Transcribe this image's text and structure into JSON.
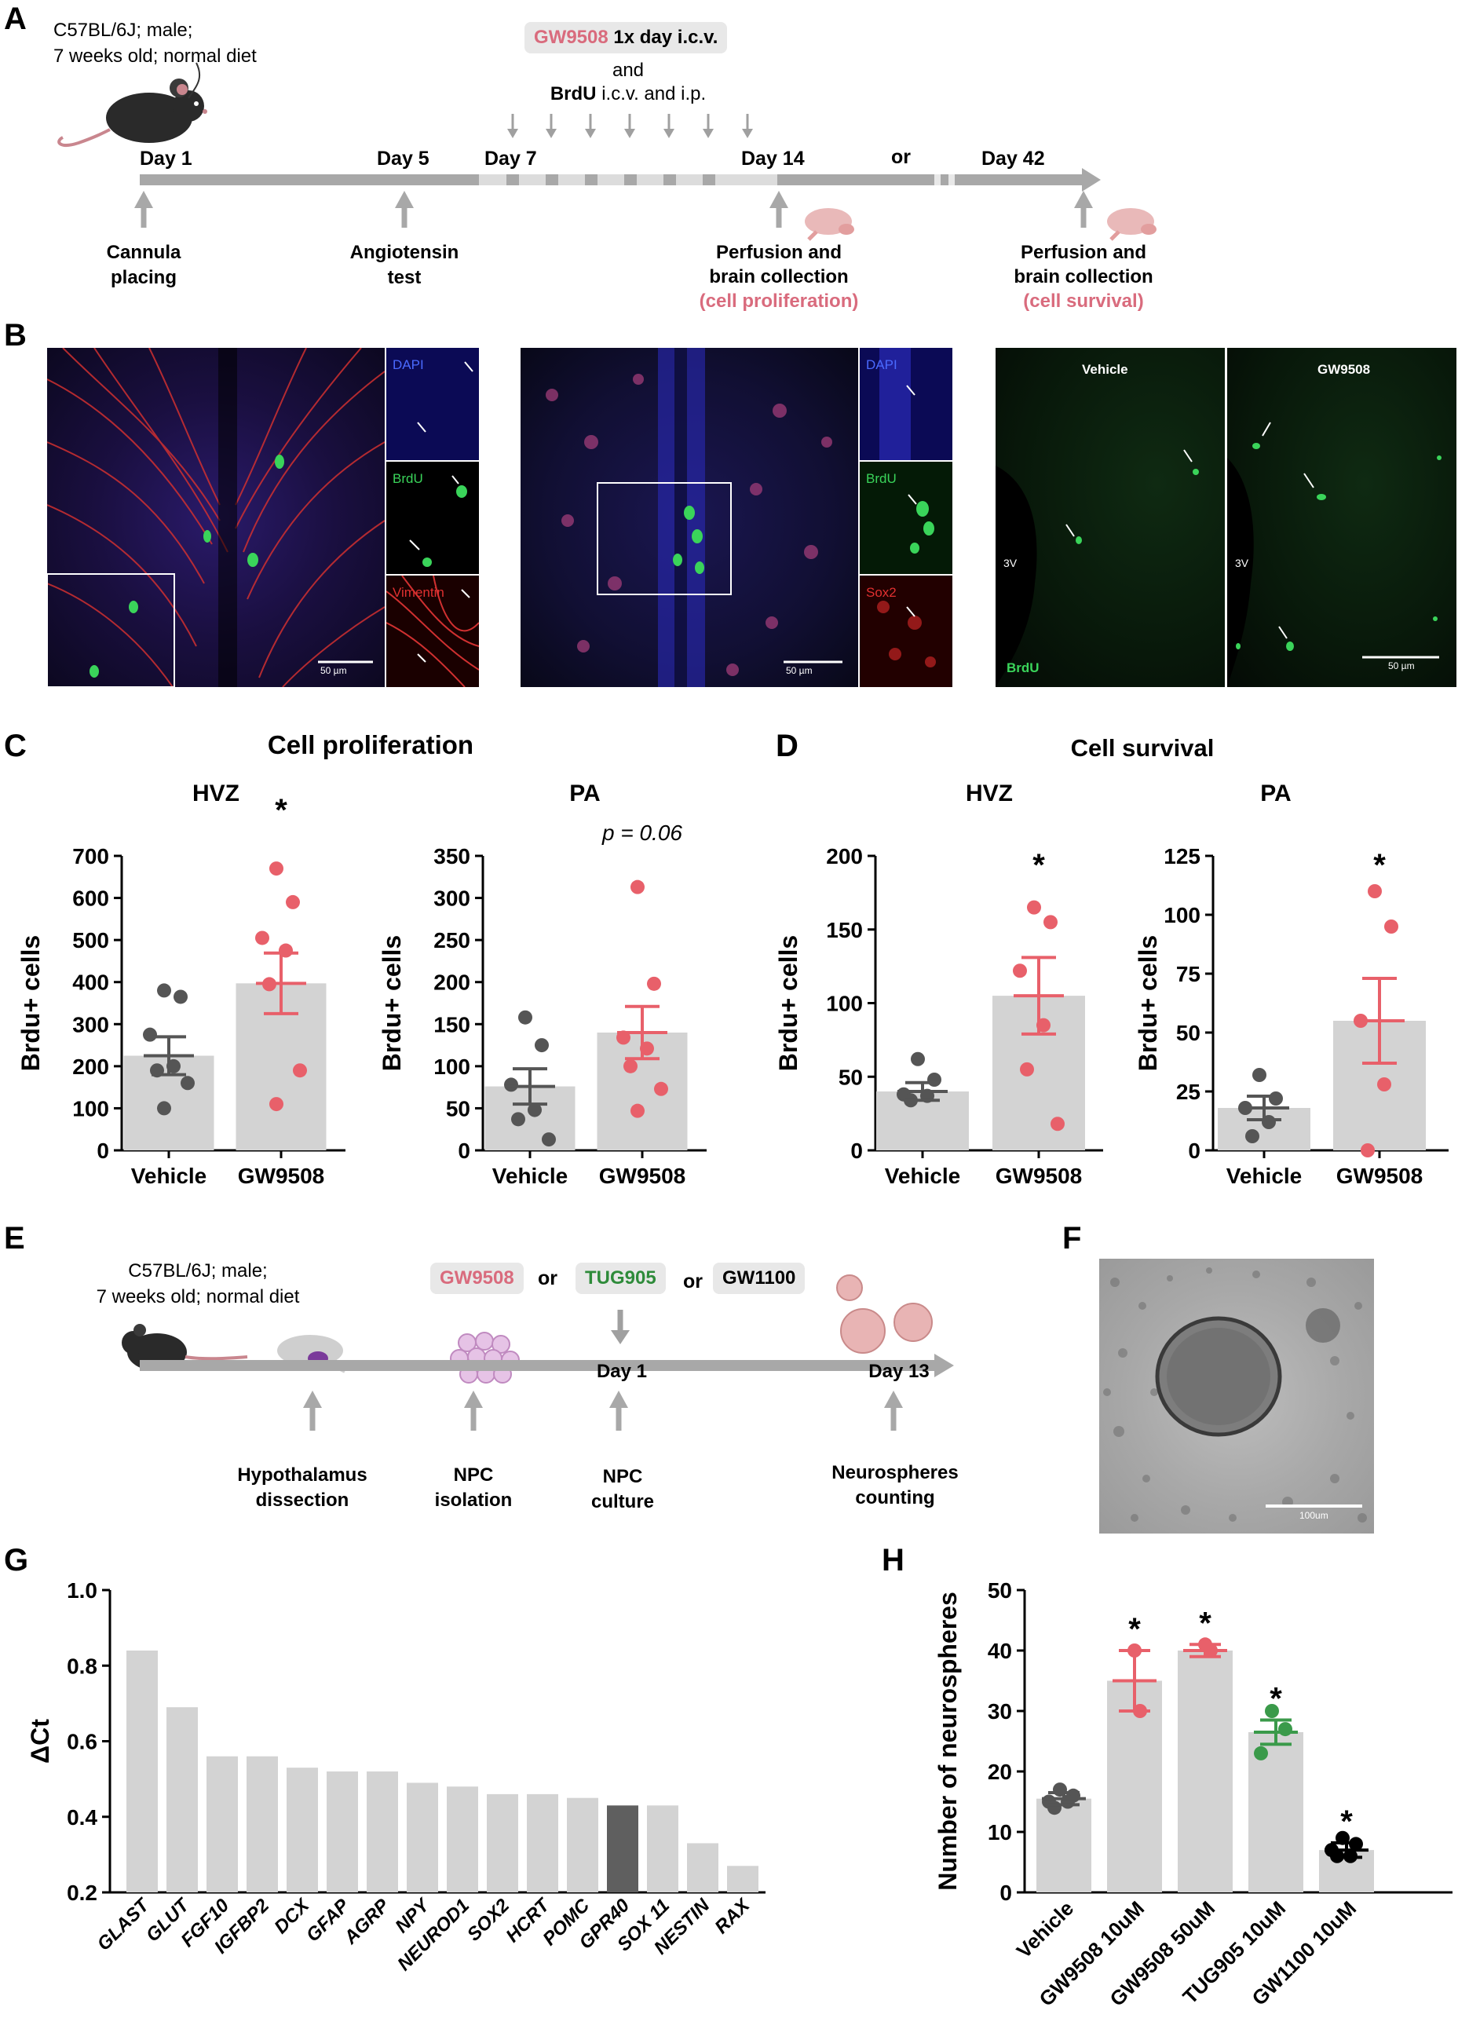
{
  "panel_letters": {
    "A": "A",
    "B": "B",
    "C": "C",
    "D": "D",
    "E": "E",
    "F": "F",
    "G": "G",
    "H": "H"
  },
  "panelA": {
    "mouse_desc_line1": "C57BL/6J; male;",
    "mouse_desc_line2": "7 weeks old; normal diet",
    "treatment_drug": "GW9508",
    "treatment_rest": " 1x day i.c.v.",
    "and": "and",
    "brdu": "BrdU",
    "brdu_rest": " i.c.v. and i.p.",
    "day1": "Day 1",
    "day5": "Day 5",
    "day7": "Day 7",
    "day14": "Day 14",
    "or": "or",
    "day42": "Day 42",
    "event1_line1": "Cannula",
    "event1_line2": "placing",
    "event2_line1": "Angiotensin",
    "event2_line2": "test",
    "event3_line1": "Perfusion and",
    "event3_line2": "brain collection",
    "event3_line3": "(cell proliferation)",
    "event4_line1": "Perfusion and",
    "event4_line2": "brain collection",
    "event4_line3": "(cell survival)"
  },
  "panelB": {
    "dapi1": "DAPI",
    "brdu1": "BrdU",
    "vimentin": "Vimentin",
    "dapi2": "DAPI",
    "brdu2": "BrdU",
    "sox2": "Sox2",
    "scale1": "50 µm",
    "scale2": "50 µm",
    "scale3": "50 µm",
    "vehicle": "Vehicle",
    "gw": "GW9508",
    "v3_1": "3V",
    "v3_2": "3V",
    "brdu3": "BrdU"
  },
  "panelC": {
    "title": "Cell proliferation"
  },
  "panelD": {
    "title": "Cell survival"
  },
  "panelE": {
    "mouse_desc_line1": "C57BL/6J; male;",
    "mouse_desc_line2": "7 weeks old; normal diet",
    "drug1": "GW9508",
    "or1": "or",
    "drug2": "TUG905",
    "or2": "or",
    "drug3": "GW1100",
    "day1": "Day 1",
    "day13": "Day 13",
    "ev1_line1": "Hypothalamus",
    "ev1_line2": "dissection",
    "ev2_line1": "NPC",
    "ev2_line2": "isolation",
    "ev3_line1": "NPC",
    "ev3_line2": "culture",
    "ev4_line1": "Neurospheres",
    "ev4_line2": "counting"
  },
  "panelF": {
    "scale": "100um"
  },
  "colors": {
    "grey_dot": "#555555",
    "red": "#e8606a",
    "green": "#3a9a4a",
    "bar": "#d3d3d3",
    "dark_bar": "#5f5f5f",
    "pink_text": "#d96b7d"
  },
  "chart_data": [
    {
      "id": "C_HVZ",
      "type": "bar",
      "title": "HVZ",
      "annotation": "*",
      "ylabel": "Brdu+ cells",
      "ylim": [
        0,
        700
      ],
      "yticks": [
        0,
        100,
        200,
        300,
        400,
        500,
        600,
        700
      ],
      "categories": [
        "Vehicle",
        "GW9508"
      ],
      "means": [
        225,
        397
      ],
      "sem": [
        45,
        72
      ],
      "points": [
        [
          380,
          365,
          275,
          200,
          190,
          160,
          100
        ],
        [
          670,
          590,
          505,
          475,
          395,
          190,
          110
        ]
      ]
    },
    {
      "id": "C_PA",
      "type": "bar",
      "title": "PA",
      "annotation": "p = 0.06",
      "ylabel": "Brdu+ cells",
      "ylim": [
        0,
        350
      ],
      "yticks": [
        0,
        50,
        100,
        150,
        200,
        250,
        300,
        350
      ],
      "categories": [
        "Vehicle",
        "GW9508"
      ],
      "means": [
        76,
        140
      ],
      "sem": [
        21,
        31
      ],
      "points": [
        [
          158,
          125,
          78,
          48,
          37,
          13
        ],
        [
          313,
          198,
          134,
          121,
          100,
          73,
          47
        ]
      ]
    },
    {
      "id": "D_HVZ",
      "type": "bar",
      "title": "HVZ",
      "annotation": "*",
      "ylabel": "Brdu+ cells",
      "ylim": [
        0,
        200
      ],
      "yticks": [
        0,
        50,
        100,
        150,
        200
      ],
      "categories": [
        "Vehicle",
        "GW9508"
      ],
      "means": [
        40,
        105
      ],
      "sem": [
        6,
        26
      ],
      "points": [
        [
          62,
          48,
          38,
          37,
          34
        ],
        [
          165,
          155,
          122,
          85,
          55,
          18
        ]
      ]
    },
    {
      "id": "D_PA",
      "type": "bar",
      "title": "PA",
      "annotation": "*",
      "ylabel": "Brdu+ cells",
      "ylim": [
        0,
        125
      ],
      "yticks": [
        0,
        25,
        50,
        75,
        100,
        125
      ],
      "categories": [
        "Vehicle",
        "GW9508"
      ],
      "means": [
        18,
        55
      ],
      "sem": [
        5,
        18
      ],
      "points": [
        [
          32,
          22,
          18,
          12,
          6
        ],
        [
          110,
          95,
          55,
          28,
          0
        ]
      ]
    },
    {
      "id": "G",
      "type": "bar",
      "ylabel": "ΔCt",
      "ylim": [
        0.2,
        1.0
      ],
      "yticks": [
        0.2,
        0.4,
        0.6,
        0.8,
        1.0
      ],
      "categories": [
        "GLAST",
        "GLUT",
        "FGF10",
        "IGFBP2",
        "DCX",
        "GFAP",
        "AGRP",
        "NPY",
        "NEUROD1",
        "SOX2",
        "HCRT",
        "POMC",
        "GPR40",
        "SOX 11",
        "NESTIN",
        "RAX"
      ],
      "values": [
        0.84,
        0.69,
        0.56,
        0.56,
        0.53,
        0.52,
        0.52,
        0.49,
        0.48,
        0.46,
        0.46,
        0.45,
        0.43,
        0.43,
        0.33,
        0.27
      ],
      "highlight": "GPR40"
    },
    {
      "id": "H",
      "type": "bar",
      "ylabel": "Number of neurospheres",
      "ylim": [
        0,
        50
      ],
      "yticks": [
        0,
        10,
        20,
        30,
        40,
        50
      ],
      "categories": [
        "Vehicle",
        "GW9508 10uM",
        "GW9508 50uM",
        "TUG905 10uM",
        "GW1100 10uM"
      ],
      "means": [
        15.5,
        35,
        40,
        26.5,
        7
      ],
      "sem": [
        1,
        5,
        1,
        2,
        1.2
      ],
      "annotations": [
        "",
        "*",
        "*",
        "*",
        "*"
      ],
      "points": [
        [
          17,
          16,
          15,
          15,
          14
        ],
        [
          40,
          30
        ],
        [
          41,
          40
        ],
        [
          30,
          27,
          23
        ],
        [
          9,
          8,
          7,
          6,
          6
        ]
      ]
    }
  ]
}
